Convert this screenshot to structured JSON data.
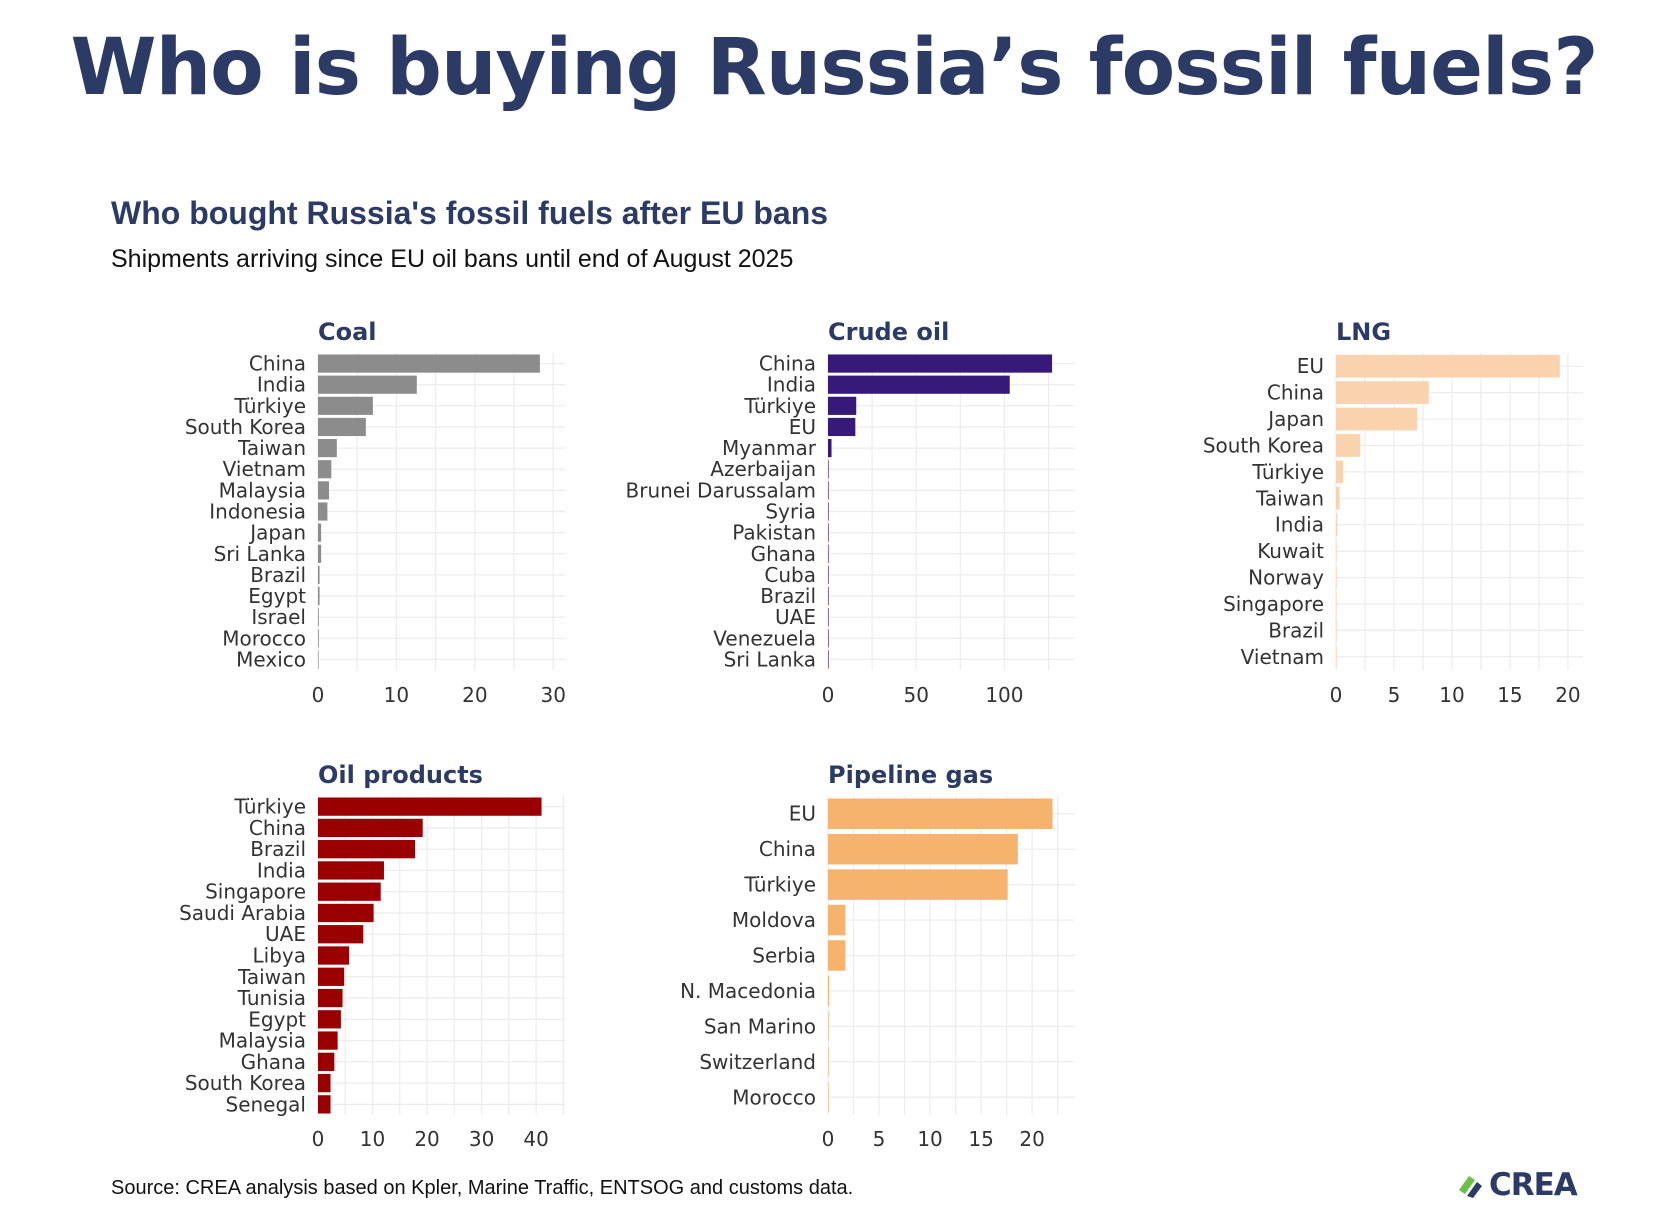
{
  "headline": "Who is buying Russia’s fossil fuels?",
  "title": "Who bought Russia's fossil fuels after EU bans",
  "subtitle": "Shipments arriving since EU oil bans until end of August 2025",
  "source": "Source: CREA analysis based on Kpler, Marine Traffic, ENTSOG and customs data.",
  "logo": {
    "text": "CREA",
    "colors": [
      "#6cc04a",
      "#2c3a66"
    ]
  },
  "chart_data": [
    {
      "type": "bar",
      "orientation": "horizontal",
      "title": "Coal",
      "color": "#8c8c8c",
      "categories": [
        "China",
        "India",
        "Türkiye",
        "South Korea",
        "Taiwan",
        "Vietnam",
        "Malaysia",
        "Indonesia",
        "Japan",
        "Sri Lanka",
        "Brazil",
        "Egypt",
        "Israel",
        "Morocco",
        "Mexico"
      ],
      "values": [
        28.3,
        12.6,
        7.0,
        6.1,
        2.4,
        1.7,
        1.4,
        1.2,
        0.4,
        0.4,
        0.2,
        0.2,
        0.1,
        0.1,
        0.05
      ],
      "xlim": [
        0,
        31.5
      ],
      "xticks": [
        0,
        10,
        20,
        30
      ]
    },
    {
      "type": "bar",
      "orientation": "horizontal",
      "title": "Crude oil",
      "color": "#37197a",
      "categories": [
        "China",
        "India",
        "Türkiye",
        "EU",
        "Myanmar",
        "Azerbaijan",
        "Brunei Darussalam",
        "Syria",
        "Pakistan",
        "Ghana",
        "Cuba",
        "Brazil",
        "UAE",
        "Venezuela",
        "Sri Lanka"
      ],
      "values": [
        127,
        103,
        16,
        15.5,
        2,
        0.3,
        0.3,
        0.2,
        0.2,
        0.2,
        0.1,
        0.1,
        0.1,
        0.1,
        0.05
      ],
      "xlim": [
        0,
        140
      ],
      "xticks": [
        0,
        50,
        100
      ]
    },
    {
      "type": "bar",
      "orientation": "horizontal",
      "title": "LNG",
      "color": "#f9d3ad",
      "categories": [
        "EU",
        "China",
        "Japan",
        "South Korea",
        "Türkiye",
        "Taiwan",
        "India",
        "Kuwait",
        "Norway",
        "Singapore",
        "Brazil",
        "Vietnam"
      ],
      "values": [
        19.3,
        8.0,
        7.0,
        2.1,
        0.6,
        0.3,
        0.1,
        0.05,
        0.05,
        0.05,
        0.05,
        0.05
      ],
      "xlim": [
        0,
        21.3
      ],
      "xticks": [
        0,
        5,
        10,
        15,
        20
      ]
    },
    {
      "type": "bar",
      "orientation": "horizontal",
      "title": "Oil products",
      "color": "#9b0000",
      "categories": [
        "Türkiye",
        "China",
        "Brazil",
        "India",
        "Singapore",
        "Saudi Arabia",
        "UAE",
        "Libya",
        "Taiwan",
        "Tunisia",
        "Egypt",
        "Malaysia",
        "Ghana",
        "South Korea",
        "Senegal"
      ],
      "values": [
        41,
        19.2,
        17.8,
        12.1,
        11.5,
        10.2,
        8.3,
        5.7,
        4.8,
        4.5,
        4.2,
        3.6,
        3.0,
        2.3,
        2.3
      ],
      "xlim": [
        0,
        45.3
      ],
      "xticks": [
        0,
        10,
        20,
        30,
        40
      ]
    },
    {
      "type": "bar",
      "orientation": "horizontal",
      "title": "Pipeline gas",
      "color": "#f5b36e",
      "categories": [
        "EU",
        "China",
        "Türkiye",
        "Moldova",
        "Serbia",
        "N. Macedonia",
        "San Marino",
        "Switzerland",
        "Morocco"
      ],
      "values": [
        22,
        18.6,
        17.6,
        1.7,
        1.7,
        0.1,
        0.05,
        0.05,
        0.05
      ],
      "xlim": [
        0,
        24.2
      ],
      "xticks": [
        0,
        5,
        10,
        15,
        20
      ]
    }
  ]
}
